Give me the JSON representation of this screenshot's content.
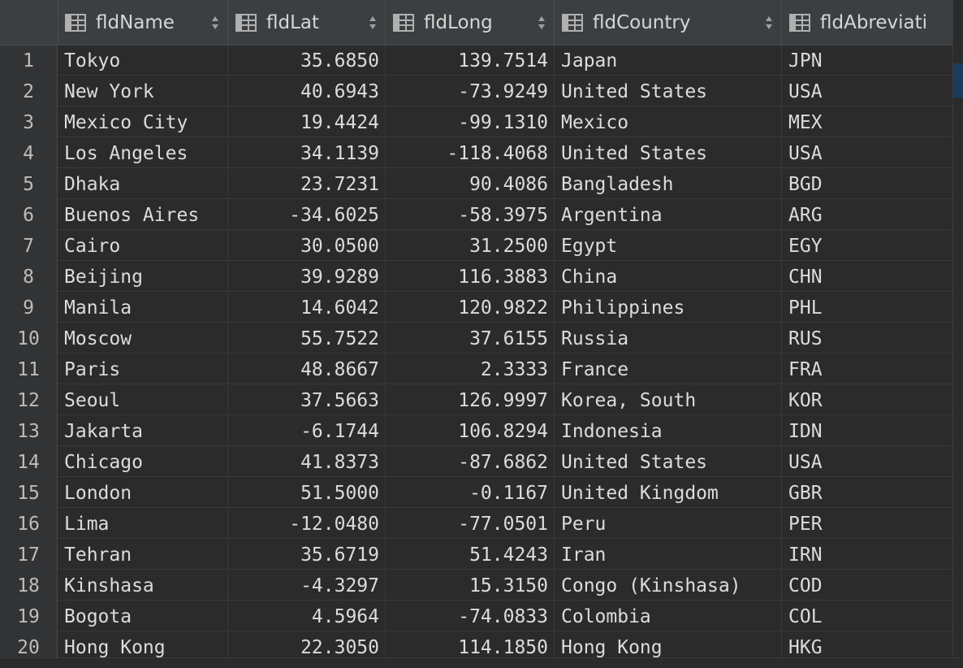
{
  "columns": [
    {
      "label": "fldName",
      "icon": "table-column-icon"
    },
    {
      "label": "fldLat",
      "icon": "table-column-icon"
    },
    {
      "label": "fldLong",
      "icon": "table-column-icon"
    },
    {
      "label": "fldCountry",
      "icon": "table-column-icon"
    },
    {
      "label": "fldAbreviati",
      "icon": "table-column-icon"
    }
  ],
  "rows": [
    {
      "n": "1",
      "name": "Tokyo",
      "lat": "35.6850",
      "long": "139.7514",
      "country": "Japan",
      "abbr": "JPN"
    },
    {
      "n": "2",
      "name": "New York",
      "lat": "40.6943",
      "long": "-73.9249",
      "country": "United States",
      "abbr": "USA"
    },
    {
      "n": "3",
      "name": "Mexico City",
      "lat": "19.4424",
      "long": "-99.1310",
      "country": "Mexico",
      "abbr": "MEX"
    },
    {
      "n": "4",
      "name": "Los Angeles",
      "lat": "34.1139",
      "long": "-118.4068",
      "country": "United States",
      "abbr": "USA"
    },
    {
      "n": "5",
      "name": "Dhaka",
      "lat": "23.7231",
      "long": "90.4086",
      "country": "Bangladesh",
      "abbr": "BGD"
    },
    {
      "n": "6",
      "name": "Buenos Aires",
      "lat": "-34.6025",
      "long": "-58.3975",
      "country": "Argentina",
      "abbr": "ARG"
    },
    {
      "n": "7",
      "name": "Cairo",
      "lat": "30.0500",
      "long": "31.2500",
      "country": "Egypt",
      "abbr": "EGY"
    },
    {
      "n": "8",
      "name": "Beijing",
      "lat": "39.9289",
      "long": "116.3883",
      "country": "China",
      "abbr": "CHN"
    },
    {
      "n": "9",
      "name": "Manila",
      "lat": "14.6042",
      "long": "120.9822",
      "country": "Philippines",
      "abbr": "PHL"
    },
    {
      "n": "10",
      "name": "Moscow",
      "lat": "55.7522",
      "long": "37.6155",
      "country": "Russia",
      "abbr": "RUS"
    },
    {
      "n": "11",
      "name": "Paris",
      "lat": "48.8667",
      "long": "2.3333",
      "country": "France",
      "abbr": "FRA"
    },
    {
      "n": "12",
      "name": "Seoul",
      "lat": "37.5663",
      "long": "126.9997",
      "country": "Korea, South",
      "abbr": "KOR"
    },
    {
      "n": "13",
      "name": "Jakarta",
      "lat": "-6.1744",
      "long": "106.8294",
      "country": "Indonesia",
      "abbr": "IDN"
    },
    {
      "n": "14",
      "name": "Chicago",
      "lat": "41.8373",
      "long": "-87.6862",
      "country": "United States",
      "abbr": "USA"
    },
    {
      "n": "15",
      "name": "London",
      "lat": "51.5000",
      "long": "-0.1167",
      "country": "United Kingdom",
      "abbr": "GBR"
    },
    {
      "n": "16",
      "name": "Lima",
      "lat": "-12.0480",
      "long": "-77.0501",
      "country": "Peru",
      "abbr": "PER"
    },
    {
      "n": "17",
      "name": "Tehran",
      "lat": "35.6719",
      "long": "51.4243",
      "country": "Iran",
      "abbr": "IRN"
    },
    {
      "n": "18",
      "name": "Kinshasa",
      "lat": "-4.3297",
      "long": "15.3150",
      "country": "Congo (Kinshasa)",
      "abbr": "COD"
    },
    {
      "n": "19",
      "name": "Bogota",
      "lat": "4.5964",
      "long": "-74.0833",
      "country": "Colombia",
      "abbr": "COL"
    },
    {
      "n": "20",
      "name": "Hong Kong",
      "lat": "22.3050",
      "long": "114.1850",
      "country": "Hong Kong",
      "abbr": "HKG"
    }
  ]
}
